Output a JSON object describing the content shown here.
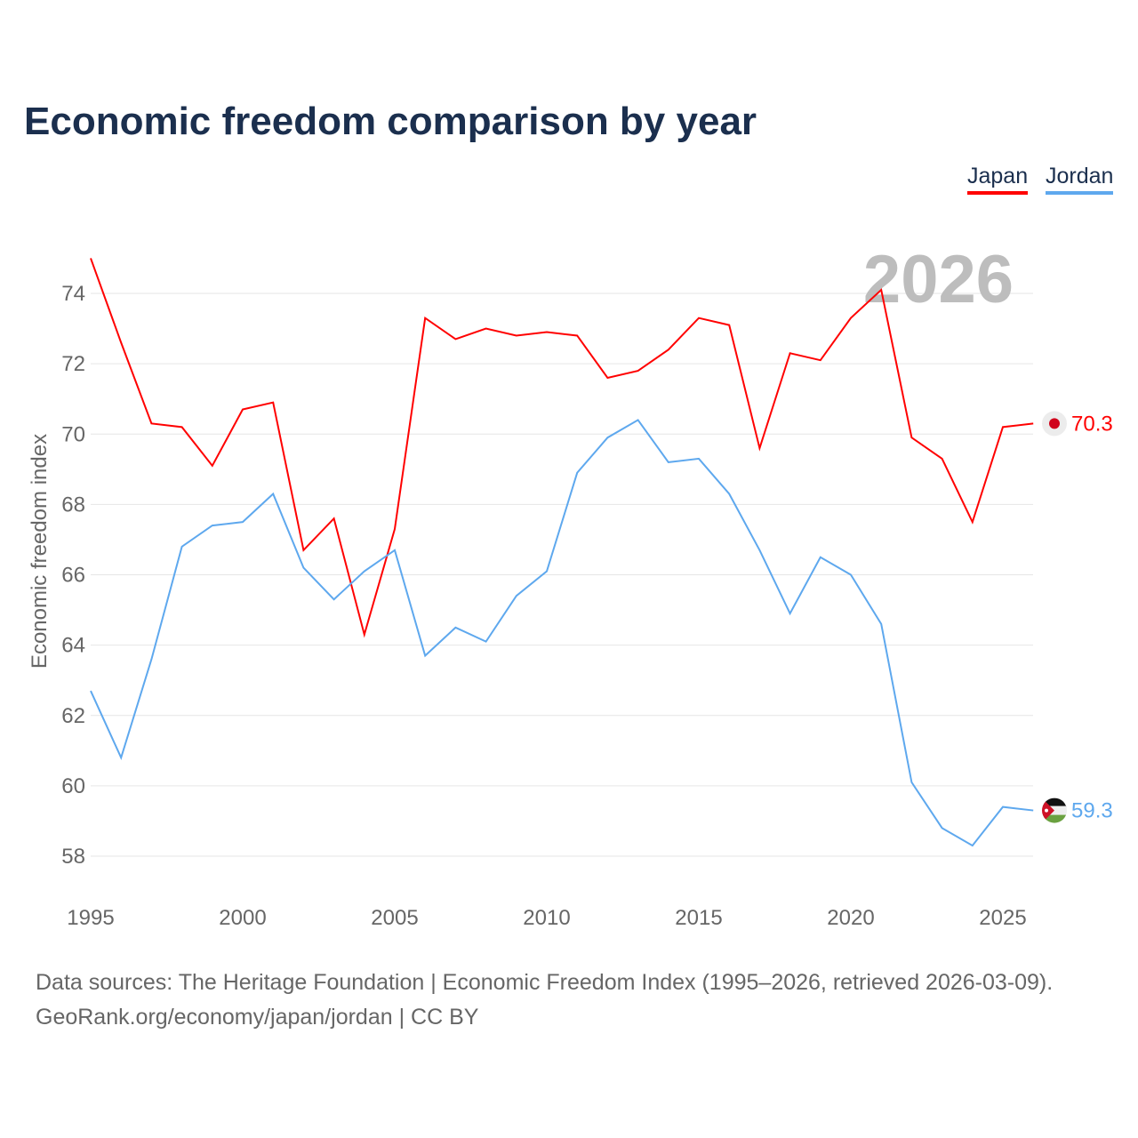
{
  "chart_data": {
    "type": "line",
    "title": "Economic freedom comparison by year",
    "ylabel": "Economic freedom index",
    "xlabel": "",
    "xlim": [
      1995,
      2026
    ],
    "ylim": [
      57,
      76
    ],
    "yticks": [
      58,
      60,
      62,
      64,
      66,
      68,
      70,
      72,
      74
    ],
    "xticks": [
      1995,
      2000,
      2005,
      2010,
      2015,
      2020,
      2025
    ],
    "year_label": "2026",
    "legend_position": "top-right",
    "grid": true,
    "x": [
      1995,
      1996,
      1997,
      1998,
      1999,
      2000,
      2001,
      2002,
      2003,
      2004,
      2005,
      2006,
      2007,
      2008,
      2009,
      2010,
      2011,
      2012,
      2013,
      2014,
      2015,
      2016,
      2017,
      2018,
      2019,
      2020,
      2021,
      2022,
      2023,
      2024,
      2025,
      2026
    ],
    "series": [
      {
        "name": "Japan",
        "color": "#ff0000",
        "end_label": "70.3",
        "values": [
          75.0,
          72.6,
          70.3,
          70.2,
          69.1,
          70.7,
          70.9,
          66.7,
          67.6,
          64.3,
          67.3,
          73.3,
          72.7,
          73.0,
          72.8,
          72.9,
          72.8,
          71.6,
          71.8,
          72.4,
          73.3,
          73.1,
          69.6,
          72.3,
          72.1,
          73.3,
          74.1,
          69.9,
          69.3,
          67.5,
          70.2,
          70.3
        ]
      },
      {
        "name": "Jordan",
        "color": "#5ea8ee",
        "end_label": "59.3",
        "values": [
          62.7,
          60.8,
          63.6,
          66.8,
          67.4,
          67.5,
          68.3,
          66.2,
          65.3,
          66.1,
          66.7,
          63.7,
          64.5,
          64.1,
          65.4,
          66.1,
          68.9,
          69.9,
          70.4,
          69.2,
          69.3,
          68.3,
          66.7,
          64.9,
          66.5,
          66.0,
          64.6,
          60.1,
          58.8,
          58.3,
          59.4,
          59.3
        ]
      }
    ]
  },
  "footer": {
    "line1": "Data sources: The Heritage Foundation | Economic Freedom Index (1995–2026, retrieved 2026-03-09).",
    "line2": "GeoRank.org/economy/japan/jordan | CC BY"
  }
}
